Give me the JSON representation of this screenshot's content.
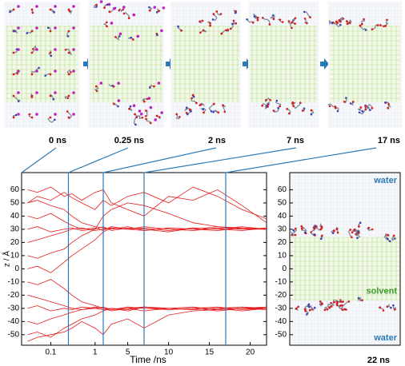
{
  "snapshots": [
    "0 ns",
    "0.25 ns",
    "2 ns",
    "7 ns",
    "17 ns"
  ],
  "chart_data": {
    "type": "line",
    "x_label": "Time /ns",
    "y_label": "z / Å",
    "x": [
      0.03,
      0.05,
      0.1,
      0.2,
      0.3,
      0.5,
      1,
      2,
      3,
      5,
      7,
      10,
      13,
      16,
      19,
      22
    ],
    "series": [
      {
        "color": "#e41a1c",
        "values": [
          50,
          52,
          48,
          45,
          40,
          35,
          32,
          31,
          30,
          32,
          29,
          31,
          30,
          32,
          30,
          31
        ]
      },
      {
        "color": "#e41a1c",
        "values": [
          40,
          38,
          42,
          36,
          33,
          30,
          31,
          29,
          32,
          30,
          31,
          29,
          31,
          30,
          32,
          30
        ]
      },
      {
        "color": "#e41a1c",
        "values": [
          30,
          32,
          28,
          30,
          31,
          29,
          30,
          32,
          29,
          31,
          30,
          28,
          31,
          30,
          29,
          31
        ]
      },
      {
        "color": "#e41a1c",
        "values": [
          20,
          22,
          25,
          28,
          30,
          31,
          29,
          30,
          31,
          30,
          32,
          30,
          29,
          31,
          30,
          30
        ]
      },
      {
        "color": "#e41a1c",
        "values": [
          60,
          58,
          62,
          55,
          57,
          52,
          58,
          60,
          50,
          45,
          40,
          55,
          52,
          60,
          48,
          35
        ]
      },
      {
        "color": "#e41a1c",
        "values": [
          10,
          8,
          12,
          15,
          20,
          25,
          30,
          40,
          45,
          50,
          48,
          42,
          35,
          32,
          31,
          30
        ]
      },
      {
        "color": "#e41a1c",
        "values": [
          0,
          2,
          -3,
          5,
          10,
          15,
          22,
          28,
          31,
          30,
          29,
          31,
          30,
          29,
          31,
          30
        ]
      },
      {
        "color": "#e41a1c",
        "values": [
          -10,
          -12,
          -8,
          -15,
          -20,
          -25,
          -28,
          -30,
          -31,
          -29,
          -30,
          -31,
          -30,
          -29,
          -31,
          -30
        ]
      },
      {
        "color": "#e41a1c",
        "values": [
          -20,
          -22,
          -25,
          -28,
          -30,
          -31,
          -29,
          -30,
          -32,
          -30,
          -29,
          -31,
          -30,
          -32,
          -30,
          -31
        ]
      },
      {
        "color": "#e41a1c",
        "values": [
          -30,
          -28,
          -32,
          -30,
          -31,
          -29,
          -30,
          -31,
          -30,
          -32,
          -29,
          -30,
          -31,
          -30,
          -29,
          -30
        ]
      },
      {
        "color": "#e41a1c",
        "values": [
          -40,
          -42,
          -38,
          -35,
          -33,
          -31,
          -30,
          -29,
          -31,
          -30,
          -32,
          -30,
          -29,
          -31,
          -30,
          -30
        ]
      },
      {
        "color": "#e41a1c",
        "values": [
          -50,
          -48,
          -52,
          -45,
          -42,
          -38,
          -35,
          -32,
          -30,
          -31,
          -29,
          -30,
          -31,
          -30,
          -32,
          -30
        ]
      },
      {
        "color": "#e41a1c",
        "values": [
          -55,
          -52,
          -50,
          -48,
          -45,
          -40,
          -45,
          -50,
          -42,
          -38,
          -45,
          -35,
          -32,
          -31,
          -30,
          -29
        ]
      },
      {
        "color": "#e41a1c",
        "values": [
          50,
          55,
          52,
          58,
          54,
          50,
          45,
          52,
          48,
          55,
          58,
          50,
          62,
          55,
          45,
          38
        ]
      }
    ],
    "xlim": [
      0.022,
      22
    ],
    "xticks": [
      0.1,
      1,
      5,
      10,
      15,
      20
    ],
    "xscale": "log-linear",
    "xbreak": 1,
    "ylim": [
      -58,
      73
    ],
    "yticks": [
      -50,
      -40,
      -30,
      -20,
      -10,
      0,
      10,
      20,
      30,
      40,
      50,
      60
    ],
    "markers": {
      "x": [
        0.25,
        2,
        7,
        17
      ],
      "color": "#2a7ab8"
    }
  },
  "final_snapshot": {
    "label": "22 ns",
    "regions": [
      "water",
      "solvent",
      "water"
    ]
  }
}
